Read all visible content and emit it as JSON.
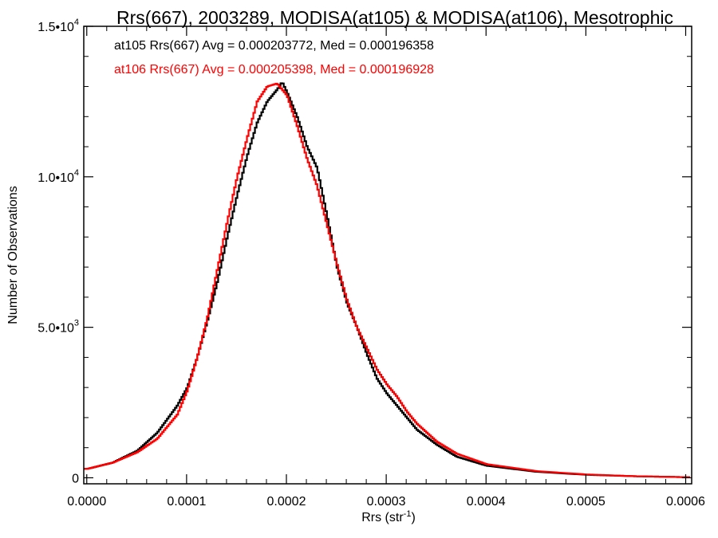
{
  "chart_data": {
    "type": "line",
    "title": "Rrs(667), 2003289, MODISA(at105) & MODISA(at106), Mesotrophic",
    "xlabel": "Rrs (str",
    "xlabel_sup": "-1",
    "xlabel_end": ")",
    "ylabel": "Number of Observations",
    "xlim": [
      -3e-06,
      0.000606
    ],
    "ylim": [
      -200,
      15000
    ],
    "x_ticks": [
      0,
      0.0001,
      0.0002,
      0.0003,
      0.0004,
      0.0005,
      0.0006
    ],
    "x_tick_labels": [
      "0.0000",
      "0.0001",
      "0.0002",
      "0.0003",
      "0.0004",
      "0.0005",
      "0.0006"
    ],
    "y_ticks": [
      0,
      5000,
      10000,
      15000
    ],
    "y_tick_labels": [
      {
        "base": "0",
        "exp": ""
      },
      {
        "base": "5.0•10",
        "exp": "3"
      },
      {
        "base": "1.0•10",
        "exp": "4"
      },
      {
        "base": "1.5•10",
        "exp": "4"
      }
    ],
    "grid": false,
    "annotations": [
      {
        "text": "at105 Rrs(667) Avg = 0.000203772, Med = 0.000196358",
        "color": "#000000"
      },
      {
        "text": "at106 Rrs(667) Avg = 0.000205398, Med = 0.000196928",
        "color": "#ff0000"
      }
    ],
    "series": [
      {
        "color": "#000000",
        "line_style": "step",
        "x": [
          0,
          2.5e-05,
          5e-05,
          7e-05,
          9e-05,
          0.0001,
          0.00011,
          0.00012,
          0.00013,
          0.00014,
          0.00015,
          0.00016,
          0.00017,
          0.00018,
          0.00019,
          0.000195,
          0.0002,
          0.00021,
          0.00022,
          0.00023,
          0.00024,
          0.00025,
          0.00026,
          0.00027,
          0.00028,
          0.00029,
          0.0003,
          0.00031,
          0.00032,
          0.00033,
          0.00035,
          0.00037,
          0.0004,
          0.00045,
          0.0005,
          0.00055,
          0.0006
        ],
        "y": [
          300,
          500,
          900,
          1500,
          2400,
          3000,
          4000,
          5200,
          6500,
          8000,
          9400,
          10700,
          11800,
          12500,
          12900,
          13150,
          12800,
          12000,
          11000,
          10300,
          8700,
          7000,
          5800,
          5000,
          4100,
          3300,
          2800,
          2400,
          2000,
          1600,
          1100,
          700,
          400,
          200,
          100,
          50,
          20
        ]
      },
      {
        "color": "#ff0000",
        "line_style": "step",
        "x": [
          0,
          2.5e-05,
          5e-05,
          7e-05,
          9e-05,
          0.0001,
          0.00011,
          0.00012,
          0.00013,
          0.00014,
          0.00015,
          0.00016,
          0.00017,
          0.00018,
          0.00019,
          0.0002,
          0.00021,
          0.00022,
          0.00023,
          0.00024,
          0.00025,
          0.00026,
          0.00027,
          0.00028,
          0.00029,
          0.0003,
          0.00031,
          0.00032,
          0.00033,
          0.00035,
          0.00037,
          0.0004,
          0.00045,
          0.0005,
          0.00055,
          0.0006
        ],
        "y": [
          300,
          500,
          850,
          1300,
          2100,
          2900,
          4000,
          5300,
          6900,
          8500,
          10000,
          11300,
          12500,
          13000,
          13100,
          12700,
          11700,
          10600,
          9700,
          8400,
          7100,
          5900,
          5000,
          4300,
          3600,
          3100,
          2700,
          2200,
          1800,
          1200,
          800,
          450,
          220,
          110,
          50,
          20
        ]
      }
    ]
  }
}
